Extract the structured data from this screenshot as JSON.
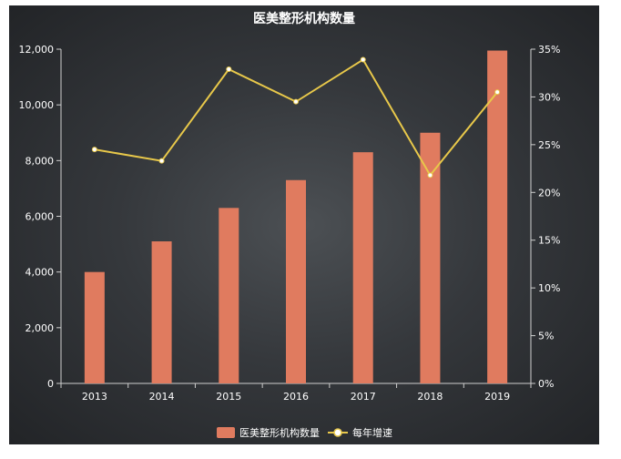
{
  "chart_data": {
    "type": "bar",
    "title": "医美整形机构数量",
    "categories": [
      "2013",
      "2014",
      "2015",
      "2016",
      "2017",
      "2018",
      "2019"
    ],
    "series": [
      {
        "name": "医美整形机构数量",
        "type": "bar",
        "axis": "left",
        "color": "#e07b5f",
        "values": [
          4000,
          5100,
          6300,
          7300,
          8300,
          9000,
          11950
        ]
      },
      {
        "name": "每年增速",
        "type": "line",
        "axis": "right",
        "color": "#e8c84a",
        "values": [
          24.5,
          23.3,
          32.9,
          29.5,
          33.9,
          21.8,
          30.5
        ]
      }
    ],
    "y_left": {
      "ylim": [
        0,
        12000
      ],
      "ticks": [
        0,
        2000,
        4000,
        6000,
        8000,
        10000,
        12000
      ],
      "tick_labels": [
        "0",
        "2,000",
        "4,000",
        "6,000",
        "8,000",
        "10,000",
        "12,000"
      ]
    },
    "y_right": {
      "ylim": [
        0,
        35
      ],
      "ticks": [
        0,
        5,
        10,
        15,
        20,
        25,
        30,
        35
      ],
      "tick_labels": [
        "0%",
        "5%",
        "10%",
        "15%",
        "20%",
        "25%",
        "30%",
        "35%"
      ]
    },
    "grid": false,
    "legend": "bottom-center"
  }
}
